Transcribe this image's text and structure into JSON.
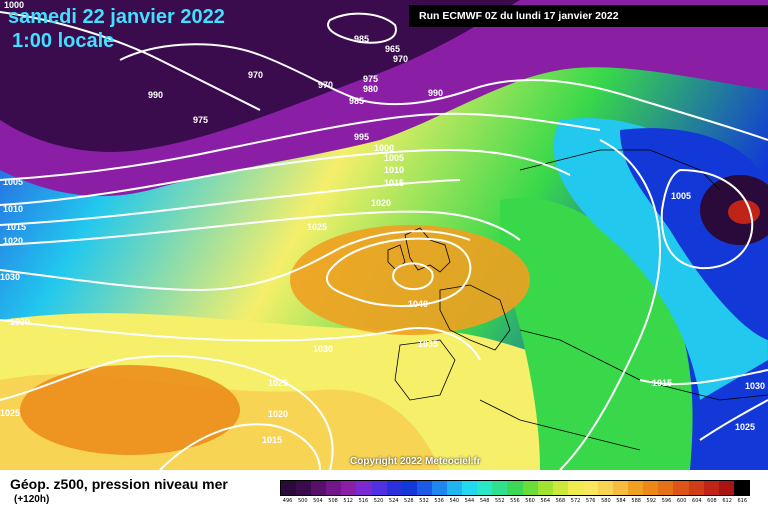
{
  "header": {
    "date": "samedi 22 janvier 2022",
    "local_time": "1:00 locale",
    "run": "Run ECMWF 0Z du lundi 17 janvier 2022"
  },
  "map": {
    "copyright": "Copyright 2022 Meteociel.fr",
    "pressure_labels": [
      "1000",
      "985",
      "965",
      "970",
      "970",
      "970",
      "990",
      "975",
      "975",
      "980",
      "985",
      "990",
      "995",
      "1000",
      "1005",
      "1010",
      "1015",
      "1020",
      "1025",
      "1040",
      "1035",
      "1030",
      "1025",
      "1020",
      "1015",
      "1005",
      "1010",
      "1015",
      "1020",
      "1030",
      "1030",
      "1025",
      "1005",
      "1015",
      "1025",
      "1030"
    ],
    "colors": {
      "low_purple": "#3a0c4e",
      "violet": "#8a1fa6",
      "blue": "#1238d8",
      "cyan": "#22c8ee",
      "green": "#38d84a",
      "yellow": "#f5ef6a",
      "orange": "#f0a020"
    }
  },
  "footer": {
    "field": "Géop. z500, pression niveau mer",
    "lead": "(+120h)",
    "legend_ticks": [
      "496",
      "500",
      "504",
      "508",
      "512",
      "516",
      "520",
      "524",
      "528",
      "532",
      "536",
      "540",
      "544",
      "548",
      "552",
      "556",
      "560",
      "564",
      "568",
      "572",
      "576",
      "580",
      "584",
      "588",
      "592",
      "596",
      "600",
      "604",
      "608",
      "612",
      "616"
    ],
    "legend_colors": [
      "#2a0a3a",
      "#3a0c4e",
      "#56106a",
      "#72168a",
      "#8a1fa6",
      "#7a2ad0",
      "#5030e0",
      "#2a30dc",
      "#1238d8",
      "#1a5ae6",
      "#1e86ee",
      "#22b4f0",
      "#22d8ee",
      "#28e8c8",
      "#30e08c",
      "#3ad854",
      "#6ade38",
      "#9ee430",
      "#cce83c",
      "#f0ec50",
      "#f8e860",
      "#f8d454",
      "#f6bc40",
      "#f0a020",
      "#ec8818",
      "#e47018",
      "#dc5418",
      "#d03c18",
      "#c02418",
      "#a81414",
      "#000000"
    ]
  }
}
